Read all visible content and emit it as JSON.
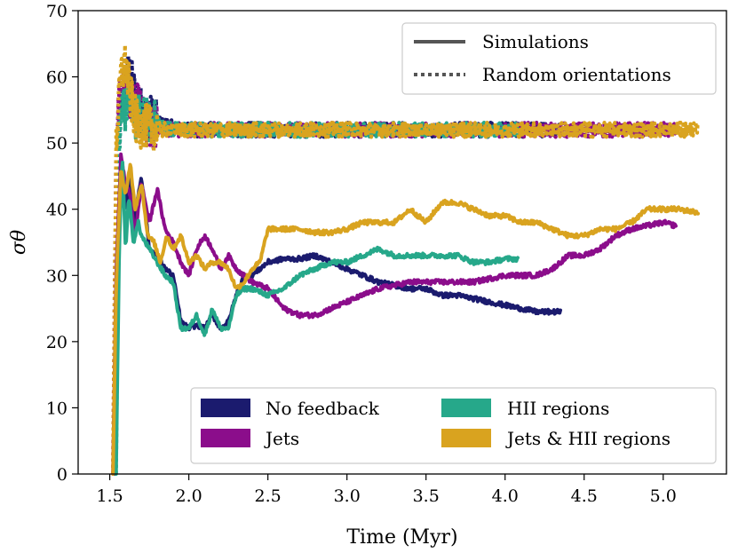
{
  "chart_data": {
    "type": "line",
    "xlabel": "Time (Myr)",
    "ylabel": "σθ",
    "xlim": [
      1.3,
      5.4
    ],
    "ylim": [
      0,
      70
    ],
    "xticks": [
      "1.5",
      "2.0",
      "2.5",
      "3.0",
      "3.5",
      "4.0",
      "4.5",
      "5.0"
    ],
    "yticks": [
      "0",
      "10",
      "20",
      "30",
      "40",
      "50",
      "60",
      "70"
    ],
    "grid": false,
    "style_legend": {
      "placement": "top-right",
      "entries": [
        {
          "label": "Simulations",
          "style": "solid"
        },
        {
          "label": "Random orientations",
          "style": "dotted"
        }
      ]
    },
    "color_legend": {
      "placement": "bottom-right",
      "entries": [
        {
          "label": "No feedback",
          "color": "#1b1b6e"
        },
        {
          "label": "HII regions",
          "color": "#26a88a"
        },
        {
          "label": "Jets",
          "color": "#8b0d8b"
        },
        {
          "label": "Jets & HII regions",
          "color": "#d9a31f"
        }
      ]
    },
    "series": [
      {
        "name": "No feedback",
        "color": "#1b1b6e",
        "start": 1.53,
        "end": 4.35,
        "simulations": {
          "x": [
            1.53,
            1.55,
            1.57,
            1.6,
            1.63,
            1.65,
            1.7,
            1.75,
            1.8,
            1.85,
            1.9,
            1.95,
            2.0,
            2.05,
            2.1,
            2.15,
            2.2,
            2.25,
            2.3,
            2.35,
            2.4,
            2.45,
            2.5,
            2.6,
            2.7,
            2.8,
            2.9,
            3.0,
            3.1,
            3.2,
            3.3,
            3.4,
            3.5,
            3.6,
            3.7,
            3.8,
            3.9,
            4.0,
            4.1,
            4.2,
            4.3,
            4.35
          ],
          "y": [
            0,
            30,
            48,
            40,
            46,
            38,
            45,
            34,
            33,
            31,
            30,
            23,
            22,
            22.5,
            22,
            24,
            22,
            23,
            27,
            30,
            30,
            31,
            32,
            32.5,
            32.5,
            33,
            32,
            31,
            30,
            29,
            28.5,
            28,
            28,
            27,
            27,
            26.5,
            26,
            25.5,
            25,
            24.5,
            24.5,
            24.5
          ]
        },
        "random": {
          "x": [
            1.53,
            1.55,
            1.58,
            1.62,
            1.66,
            1.7,
            1.75,
            1.8,
            1.9,
            2.0,
            2.2,
            2.4,
            2.6,
            2.8,
            3.0,
            3.2,
            3.4,
            3.6,
            3.8,
            4.0,
            4.2,
            4.3
          ],
          "y": [
            0,
            50,
            56,
            61,
            57,
            55,
            54,
            53,
            52.5,
            52,
            52,
            52,
            52,
            52,
            52,
            52,
            52,
            52,
            52,
            52,
            52,
            52
          ]
        }
      },
      {
        "name": "Jets",
        "color": "#8b0d8b",
        "start": 1.52,
        "end": 5.08,
        "simulations": {
          "x": [
            1.52,
            1.54,
            1.57,
            1.6,
            1.63,
            1.66,
            1.7,
            1.75,
            1.8,
            1.85,
            1.9,
            1.95,
            2.0,
            2.05,
            2.1,
            2.15,
            2.2,
            2.25,
            2.3,
            2.35,
            2.4,
            2.5,
            2.6,
            2.7,
            2.8,
            2.9,
            3.0,
            3.2,
            3.4,
            3.6,
            3.8,
            4.0,
            4.1,
            4.2,
            4.3,
            4.4,
            4.5,
            4.6,
            4.7,
            4.8,
            4.9,
            5.0,
            5.08
          ],
          "y": [
            0,
            30,
            48,
            44,
            42,
            36,
            44,
            38,
            43,
            37,
            35,
            32,
            30,
            34,
            36,
            34,
            31,
            33,
            31,
            30,
            29,
            28,
            25,
            24,
            24,
            25,
            26,
            28,
            29,
            29,
            29,
            30,
            30,
            30,
            31,
            33,
            33,
            34,
            36,
            37,
            37.5,
            38,
            37.5
          ]
        },
        "random": {
          "x": [
            1.52,
            1.54,
            1.57,
            1.6,
            1.64,
            1.68,
            1.72,
            1.8,
            1.9,
            2.0,
            2.3,
            2.6,
            3.0,
            3.4,
            3.8,
            4.2,
            4.6,
            5.0,
            5.08
          ],
          "y": [
            0,
            50,
            58,
            60,
            55,
            56,
            53,
            52.5,
            52,
            52,
            52,
            52,
            52,
            52,
            52,
            52,
            52,
            52,
            52
          ]
        }
      },
      {
        "name": "HII regions",
        "color": "#26a88a",
        "start": 1.54,
        "end": 4.08,
        "simulations": {
          "x": [
            1.54,
            1.56,
            1.58,
            1.6,
            1.62,
            1.65,
            1.68,
            1.7,
            1.75,
            1.8,
            1.85,
            1.9,
            1.95,
            2.0,
            2.05,
            2.1,
            2.15,
            2.2,
            2.25,
            2.3,
            2.35,
            2.4,
            2.5,
            2.6,
            2.7,
            2.8,
            2.9,
            3.0,
            3.1,
            3.2,
            3.3,
            3.5,
            3.7,
            3.8,
            3.9,
            4.0,
            4.08
          ],
          "y": [
            0,
            35,
            48,
            34,
            42,
            35,
            38,
            36,
            34,
            32,
            30,
            29,
            22,
            22,
            24,
            21,
            25,
            22,
            22,
            27,
            28,
            28,
            27,
            28,
            30,
            31,
            32,
            32,
            33,
            34,
            33,
            33,
            33,
            32,
            32,
            32.5,
            32.5
          ]
        },
        "random": {
          "x": [
            1.54,
            1.56,
            1.59,
            1.62,
            1.66,
            1.7,
            1.8,
            1.9,
            2.0,
            2.4,
            2.8,
            3.2,
            3.6,
            4.0,
            4.08
          ],
          "y": [
            0,
            52,
            55,
            56,
            54,
            54,
            53,
            52,
            52,
            52,
            52,
            52,
            52,
            52,
            52
          ]
        }
      },
      {
        "name": "Jets & HII regions",
        "color": "#d9a31f",
        "start": 1.52,
        "end": 5.22,
        "simulations": {
          "x": [
            1.52,
            1.54,
            1.57,
            1.6,
            1.63,
            1.66,
            1.7,
            1.74,
            1.78,
            1.82,
            1.86,
            1.9,
            1.95,
            2.0,
            2.05,
            2.1,
            2.15,
            2.2,
            2.25,
            2.3,
            2.35,
            2.4,
            2.45,
            2.5,
            2.6,
            2.7,
            2.8,
            2.9,
            3.0,
            3.1,
            3.2,
            3.3,
            3.4,
            3.5,
            3.6,
            3.7,
            3.8,
            3.9,
            4.0,
            4.1,
            4.2,
            4.3,
            4.4,
            4.5,
            4.6,
            4.7,
            4.8,
            4.9,
            5.0,
            5.1,
            5.22
          ],
          "y": [
            0,
            28,
            46,
            42,
            47,
            40,
            44,
            36,
            35,
            32,
            36,
            34,
            36,
            32,
            33,
            31,
            32,
            32,
            31,
            28,
            29,
            31,
            32,
            37,
            37,
            37,
            36.5,
            36.5,
            37,
            38,
            38,
            38,
            40,
            38,
            41,
            41,
            40,
            39,
            39,
            38,
            38,
            37,
            36,
            36,
            37,
            37,
            38,
            40,
            40,
            40,
            39.5
          ]
        },
        "random": {
          "x": [
            1.52,
            1.54,
            1.57,
            1.6,
            1.63,
            1.67,
            1.72,
            1.8,
            1.9,
            2.0,
            2.4,
            2.8,
            3.2,
            3.6,
            4.0,
            4.4,
            4.8,
            5.22
          ],
          "y": [
            0,
            50,
            60,
            62,
            57,
            53,
            52.5,
            52,
            52,
            52,
            52,
            52,
            52,
            52,
            52,
            52,
            52,
            52
          ]
        }
      }
    ]
  }
}
